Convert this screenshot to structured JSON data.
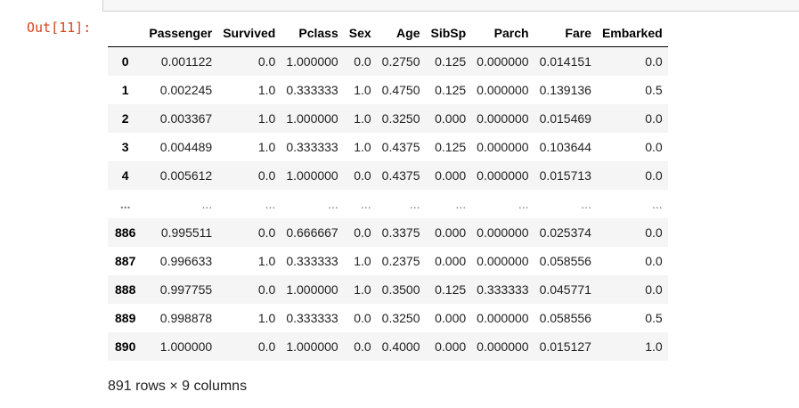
{
  "output_prompt": "Out[11]:",
  "table": {
    "columns": [
      "Passenger",
      "Survived",
      "Pclass",
      "Sex",
      "Age",
      "SibSp",
      "Parch",
      "Fare",
      "Embarked"
    ],
    "rows": [
      {
        "index": "0",
        "values": [
          "0.001122",
          "0.0",
          "1.000000",
          "0.0",
          "0.2750",
          "0.125",
          "0.000000",
          "0.014151",
          "0.0"
        ]
      },
      {
        "index": "1",
        "values": [
          "0.002245",
          "1.0",
          "0.333333",
          "1.0",
          "0.4750",
          "0.125",
          "0.000000",
          "0.139136",
          "0.5"
        ]
      },
      {
        "index": "2",
        "values": [
          "0.003367",
          "1.0",
          "1.000000",
          "1.0",
          "0.3250",
          "0.000",
          "0.000000",
          "0.015469",
          "0.0"
        ]
      },
      {
        "index": "3",
        "values": [
          "0.004489",
          "1.0",
          "0.333333",
          "1.0",
          "0.4375",
          "0.125",
          "0.000000",
          "0.103644",
          "0.0"
        ]
      },
      {
        "index": "4",
        "values": [
          "0.005612",
          "0.0",
          "1.000000",
          "0.0",
          "0.4375",
          "0.000",
          "0.000000",
          "0.015713",
          "0.0"
        ]
      },
      {
        "index": "...",
        "values": [
          "...",
          "...",
          "...",
          "...",
          "...",
          "...",
          "...",
          "...",
          "..."
        ]
      },
      {
        "index": "886",
        "values": [
          "0.995511",
          "0.0",
          "0.666667",
          "0.0",
          "0.3375",
          "0.000",
          "0.000000",
          "0.025374",
          "0.0"
        ]
      },
      {
        "index": "887",
        "values": [
          "0.996633",
          "1.0",
          "0.333333",
          "1.0",
          "0.2375",
          "0.000",
          "0.000000",
          "0.058556",
          "0.0"
        ]
      },
      {
        "index": "888",
        "values": [
          "0.997755",
          "0.0",
          "1.000000",
          "1.0",
          "0.3500",
          "0.125",
          "0.333333",
          "0.045771",
          "0.0"
        ]
      },
      {
        "index": "889",
        "values": [
          "0.998878",
          "1.0",
          "0.333333",
          "0.0",
          "0.3250",
          "0.000",
          "0.000000",
          "0.058556",
          "0.5"
        ]
      },
      {
        "index": "890",
        "values": [
          "1.000000",
          "0.0",
          "1.000000",
          "0.0",
          "0.4000",
          "0.000",
          "0.000000",
          "0.015127",
          "1.0"
        ]
      }
    ]
  },
  "shape_caption": "891 rows × 9 columns",
  "colors": {
    "prompt": "#d84315",
    "row_stripe": "#f5f5f5",
    "header_rule": "#000000"
  }
}
